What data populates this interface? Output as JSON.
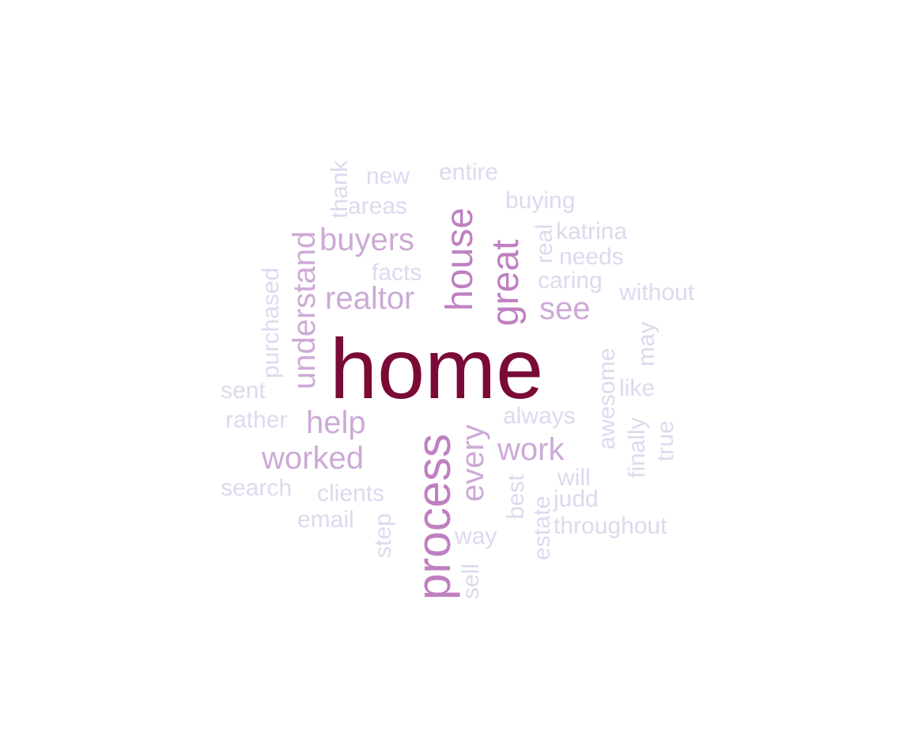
{
  "palette": {
    "tier1": "#7a0a36",
    "tier2": "#bf80c2",
    "tier3": "#cdaad6",
    "tier4": "#e0d8ee"
  },
  "words": [
    {
      "text": "home",
      "tier": "tier1",
      "rotated": false
    },
    {
      "text": "process",
      "tier": "tier2",
      "rotated": true
    },
    {
      "text": "house",
      "tier": "tier2",
      "rotated": true
    },
    {
      "text": "great",
      "tier": "tier2",
      "rotated": true
    },
    {
      "text": "understand",
      "tier": "tier3",
      "rotated": true
    },
    {
      "text": "buyers",
      "tier": "tier3",
      "rotated": false
    },
    {
      "text": "realtor",
      "tier": "tier3",
      "rotated": false
    },
    {
      "text": "see",
      "tier": "tier3",
      "rotated": false
    },
    {
      "text": "help",
      "tier": "tier3",
      "rotated": false
    },
    {
      "text": "worked",
      "tier": "tier3",
      "rotated": false
    },
    {
      "text": "work",
      "tier": "tier3",
      "rotated": false
    },
    {
      "text": "every",
      "tier": "tier3",
      "rotated": true
    },
    {
      "text": "thank",
      "tier": "tier4",
      "rotated": true
    },
    {
      "text": "new",
      "tier": "tier4",
      "rotated": false
    },
    {
      "text": "entire",
      "tier": "tier4",
      "rotated": false
    },
    {
      "text": "areas",
      "tier": "tier4",
      "rotated": false
    },
    {
      "text": "buying",
      "tier": "tier4",
      "rotated": false
    },
    {
      "text": "real",
      "tier": "tier4",
      "rotated": true
    },
    {
      "text": "katrina",
      "tier": "tier4",
      "rotated": false
    },
    {
      "text": "needs",
      "tier": "tier4",
      "rotated": false
    },
    {
      "text": "facts",
      "tier": "tier4",
      "rotated": false
    },
    {
      "text": "caring",
      "tier": "tier4",
      "rotated": false
    },
    {
      "text": "without",
      "tier": "tier4",
      "rotated": false
    },
    {
      "text": "purchased",
      "tier": "tier4",
      "rotated": true
    },
    {
      "text": "sent",
      "tier": "tier4",
      "rotated": false
    },
    {
      "text": "rather",
      "tier": "tier4",
      "rotated": false
    },
    {
      "text": "always",
      "tier": "tier4",
      "rotated": false
    },
    {
      "text": "awesome",
      "tier": "tier4",
      "rotated": true
    },
    {
      "text": "may",
      "tier": "tier4",
      "rotated": true
    },
    {
      "text": "like",
      "tier": "tier4",
      "rotated": false
    },
    {
      "text": "finally",
      "tier": "tier4",
      "rotated": true
    },
    {
      "text": "true",
      "tier": "tier4",
      "rotated": true
    },
    {
      "text": "search",
      "tier": "tier4",
      "rotated": false
    },
    {
      "text": "clients",
      "tier": "tier4",
      "rotated": false
    },
    {
      "text": "email",
      "tier": "tier4",
      "rotated": false
    },
    {
      "text": "step",
      "tier": "tier4",
      "rotated": true
    },
    {
      "text": "best",
      "tier": "tier4",
      "rotated": true
    },
    {
      "text": "will",
      "tier": "tier4",
      "rotated": false
    },
    {
      "text": "judd",
      "tier": "tier4",
      "rotated": false
    },
    {
      "text": "estate",
      "tier": "tier4",
      "rotated": true
    },
    {
      "text": "throughout",
      "tier": "tier4",
      "rotated": false
    },
    {
      "text": "way",
      "tier": "tier4",
      "rotated": false
    },
    {
      "text": "sell",
      "tier": "tier4",
      "rotated": true
    }
  ]
}
